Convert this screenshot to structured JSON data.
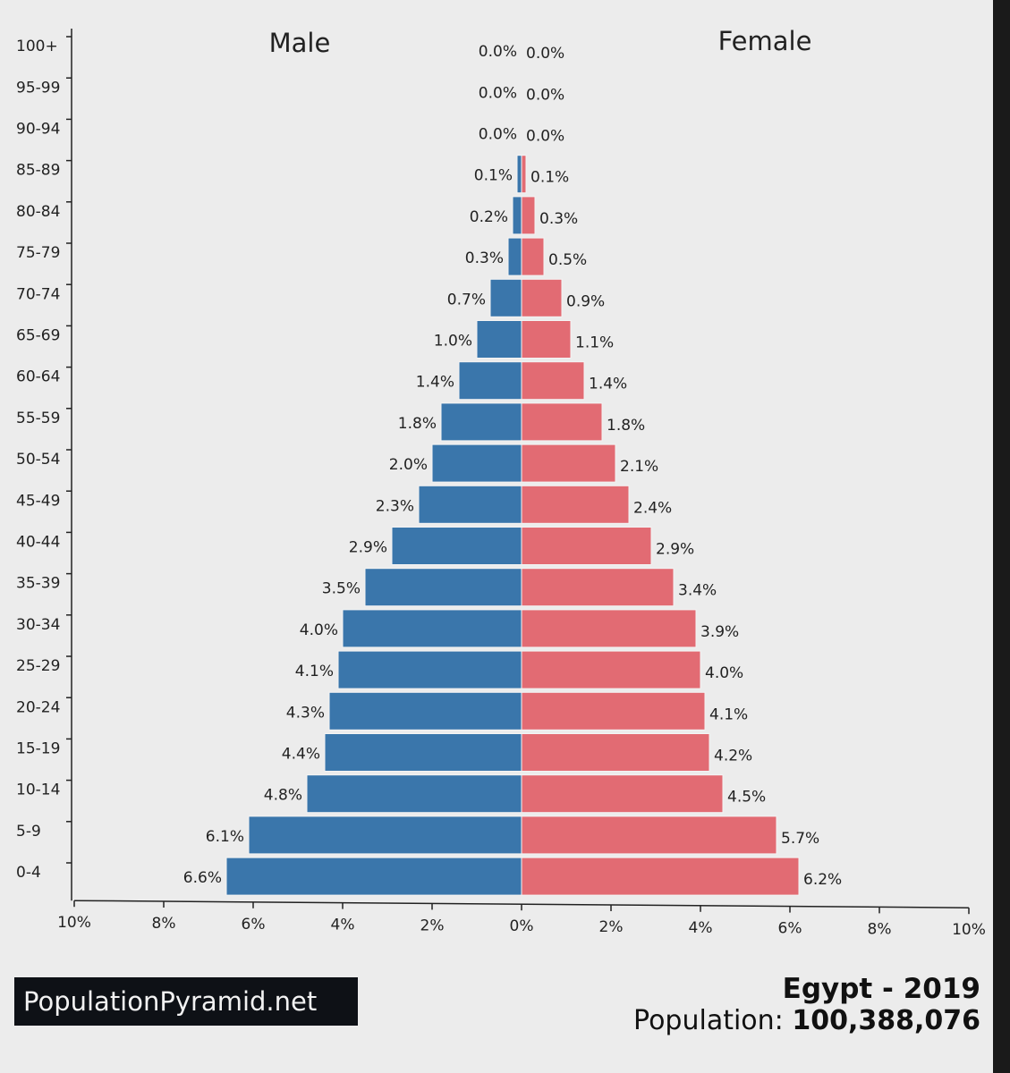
{
  "chart_data": {
    "type": "bar",
    "orientation": "horizontal-pyramid",
    "categories": [
      "100+",
      "95-99",
      "90-94",
      "85-89",
      "80-84",
      "75-79",
      "70-74",
      "65-69",
      "60-64",
      "55-59",
      "50-54",
      "45-49",
      "40-44",
      "35-39",
      "30-34",
      "25-29",
      "20-24",
      "15-19",
      "10-14",
      "5-9",
      "0-4"
    ],
    "series": [
      {
        "name": "Male",
        "color": "#3a76ab",
        "values": [
          0.0,
          0.0,
          0.0,
          0.1,
          0.2,
          0.3,
          0.7,
          1.0,
          1.4,
          1.8,
          2.0,
          2.3,
          2.9,
          3.5,
          4.0,
          4.1,
          4.3,
          4.4,
          4.8,
          6.1,
          6.6
        ],
        "labels": [
          "0.0%",
          "0.0%",
          "0.0%",
          "0.1%",
          "0.2%",
          "0.3%",
          "0.7%",
          "1.0%",
          "1.4%",
          "1.8%",
          "2.0%",
          "2.3%",
          "2.9%",
          "3.5%",
          "4.0%",
          "4.1%",
          "4.3%",
          "4.4%",
          "4.8%",
          "6.1%",
          "6.6%"
        ]
      },
      {
        "name": "Female",
        "color": "#e26b73",
        "values": [
          0.0,
          0.0,
          0.0,
          0.1,
          0.3,
          0.5,
          0.9,
          1.1,
          1.4,
          1.8,
          2.1,
          2.4,
          2.9,
          3.4,
          3.9,
          4.0,
          4.1,
          4.2,
          4.5,
          5.7,
          6.2
        ],
        "labels": [
          "0.0%",
          "0.0%",
          "0.0%",
          "0.1%",
          "0.3%",
          "0.5%",
          "0.9%",
          "1.1%",
          "1.4%",
          "1.8%",
          "2.1%",
          "2.4%",
          "2.9%",
          "3.4%",
          "3.9%",
          "4.0%",
          "4.1%",
          "4.2%",
          "4.5%",
          "5.7%",
          "6.2%"
        ]
      }
    ],
    "xlim": [
      -10,
      10
    ],
    "xticks": [
      -10,
      -8,
      -6,
      -4,
      -2,
      0,
      2,
      4,
      6,
      8,
      10
    ],
    "xtick_labels": [
      "10%",
      "8%",
      "6%",
      "4%",
      "2%",
      "0%",
      "2%",
      "4%",
      "6%",
      "8%",
      "10%"
    ],
    "grid": false
  },
  "brand": "PopulationPyramid.net",
  "title": "Egypt - 2019",
  "population_label": "Population:",
  "population_value": "100,388,076"
}
